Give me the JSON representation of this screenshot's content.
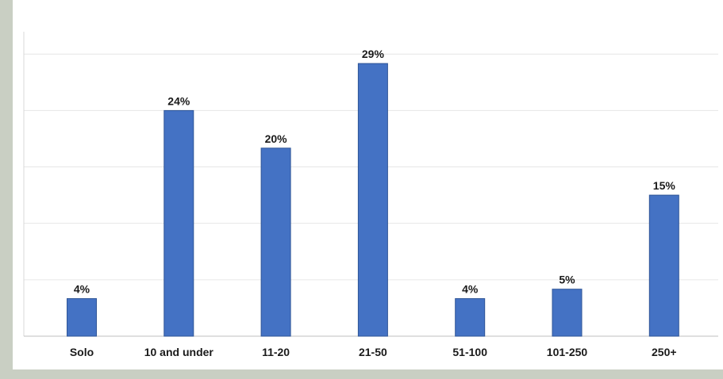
{
  "chart_data": {
    "type": "bar",
    "title": "",
    "xlabel": "",
    "ylabel": "",
    "categories": [
      "Solo",
      "10 and under",
      "11-20",
      "21-50",
      "51-100",
      "101-250",
      "250+"
    ],
    "values": [
      4,
      24,
      20,
      29,
      4,
      5,
      15
    ],
    "value_labels": [
      "4%",
      "24%",
      "20%",
      "29%",
      "4%",
      "5%",
      "15%"
    ],
    "ylim": [
      0,
      30
    ],
    "grid": true,
    "legend": "none",
    "bar_color": "#4472c4",
    "bar_edge_color": "#2f5597"
  }
}
